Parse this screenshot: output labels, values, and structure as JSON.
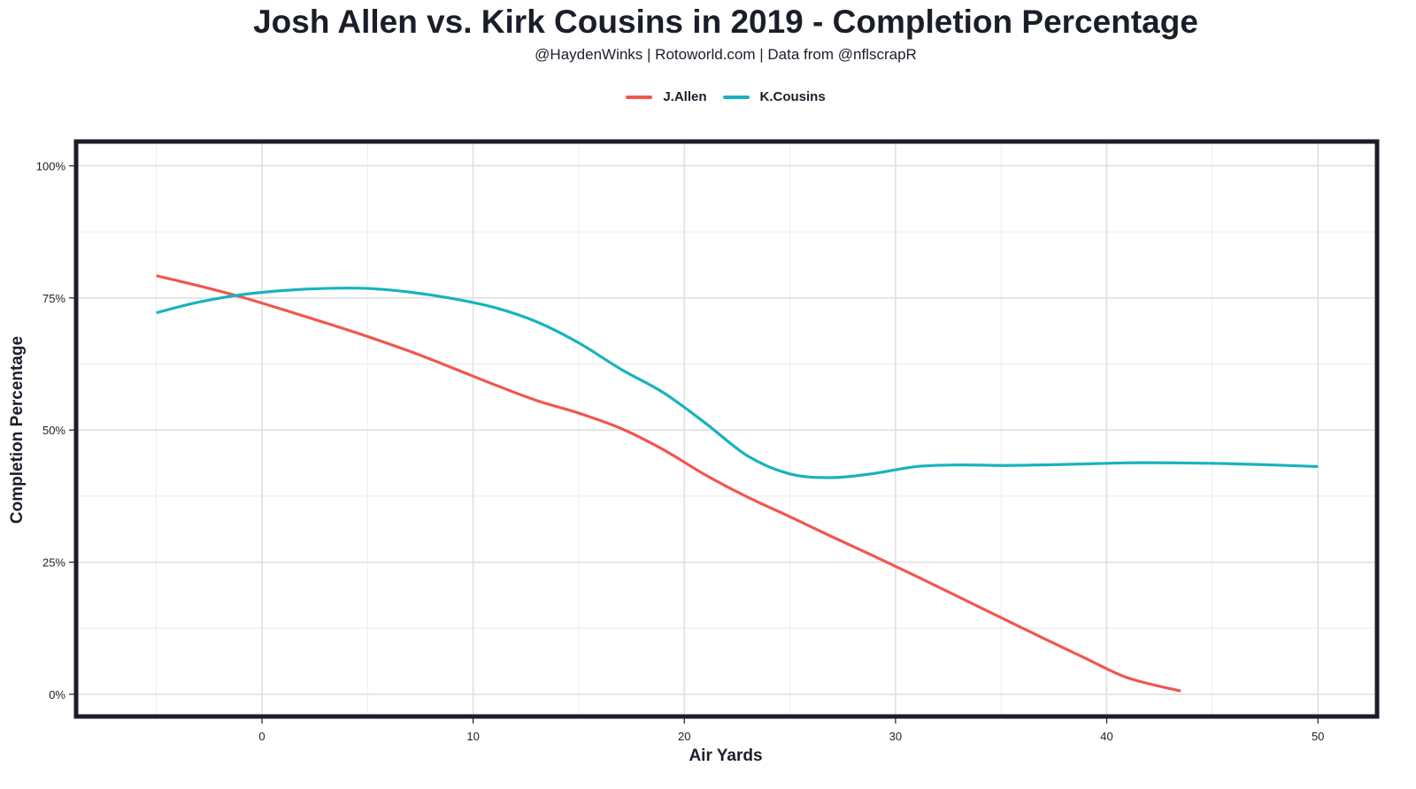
{
  "chart_data": {
    "type": "line",
    "title": "Josh Allen vs. Kirk Cousins in 2019 - Completion Percentage",
    "subtitle": "@HaydenWinks | Rotoworld.com | Data from @nflscrapR",
    "xlabel": "Air Yards",
    "ylabel": "Completion Percentage",
    "xlim": [
      -8.8,
      52.8
    ],
    "ylim": [
      -4.2,
      104.6
    ],
    "x_ticks": [
      0,
      10,
      20,
      30,
      40,
      50
    ],
    "x_tick_labels": [
      "0",
      "10",
      "20",
      "30",
      "40",
      "50"
    ],
    "y_ticks": [
      0,
      25,
      50,
      75,
      100
    ],
    "y_tick_labels": [
      "0%",
      "25%",
      "50%",
      "75%",
      "100%"
    ],
    "grid": true,
    "legend_position": "top",
    "series": [
      {
        "name": "J.Allen",
        "color": "#f0574f",
        "x": [
          -5,
          -3,
          -1,
          1,
          3,
          5,
          7,
          9,
          11,
          13,
          15,
          17,
          19,
          21,
          23,
          25,
          27,
          29,
          31,
          33,
          35,
          37,
          39,
          41,
          43.5
        ],
        "y": [
          79.2,
          77.3,
          75.2,
          72.8,
          70.3,
          67.7,
          64.9,
          61.8,
          58.6,
          55.6,
          53.2,
          50.3,
          46.3,
          41.5,
          37.3,
          33.6,
          29.8,
          26.1,
          22.3,
          18.4,
          14.5,
          10.6,
          6.8,
          3.1,
          0.6
        ]
      },
      {
        "name": "K.Cousins",
        "color": "#17b3be",
        "x": [
          -5,
          -3,
          -1,
          1,
          3,
          5,
          7,
          9,
          11,
          13,
          15,
          17,
          19,
          21,
          23,
          25,
          27,
          29,
          31,
          33,
          35,
          37,
          39,
          41,
          43,
          45,
          47,
          50
        ],
        "y": [
          72.2,
          74.2,
          75.6,
          76.4,
          76.8,
          76.8,
          76.1,
          74.9,
          73.2,
          70.5,
          66.5,
          61.5,
          57.1,
          51.3,
          45.1,
          41.7,
          41.0,
          41.8,
          43.1,
          43.4,
          43.3,
          43.4,
          43.6,
          43.8,
          43.8,
          43.7,
          43.5,
          43.1
        ]
      }
    ]
  }
}
